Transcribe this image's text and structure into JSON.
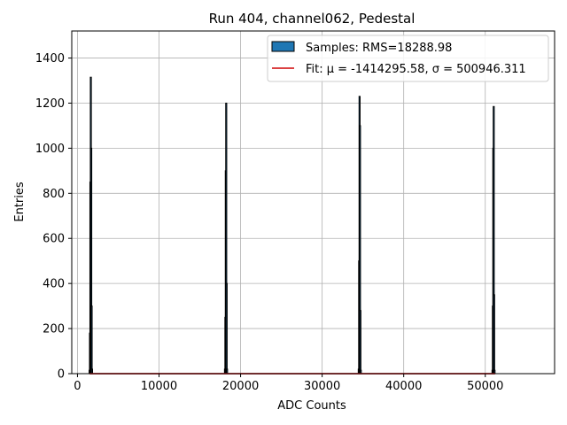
{
  "chart_data": {
    "type": "bar",
    "title": "Run 404, channel062, Pedestal",
    "xlabel": "ADC Counts",
    "ylabel": "Entries",
    "xlim": [
      -700,
      58500
    ],
    "ylim": [
      0,
      1520
    ],
    "xticks": [
      0,
      10000,
      20000,
      30000,
      40000,
      50000
    ],
    "xtick_labels": [
      "0",
      "10000",
      "20000",
      "30000",
      "40000",
      "50000"
    ],
    "yticks": [
      0,
      200,
      400,
      600,
      800,
      1000,
      1200,
      1400
    ],
    "ytick_labels": [
      "0",
      "200",
      "400",
      "600",
      "800",
      "1000",
      "1200",
      "1400"
    ],
    "grid": true,
    "legend_position": "top-right",
    "colors": {
      "hist_fill": "#1f77b4",
      "hist_edge": "#000000",
      "fit_line": "#d62728"
    },
    "series": [
      {
        "name": "Samples: RMS=18288.98",
        "kind": "histogram",
        "x": [
          1480,
          1530,
          1580,
          1630,
          1680,
          1730,
          1780,
          18080,
          18130,
          18180,
          18230,
          18280,
          18330,
          34480,
          34530,
          34580,
          34630,
          34680,
          34730,
          50880,
          50930,
          50980,
          51030,
          51080,
          51130
        ],
        "values": [
          15,
          180,
          850,
          1315,
          1000,
          300,
          20,
          20,
          250,
          900,
          1200,
          400,
          20,
          20,
          500,
          1230,
          1100,
          280,
          15,
          15,
          300,
          1000,
          1185,
          350,
          15
        ]
      },
      {
        "name": "Fit: μ = -1414295.58, σ = 500946.311",
        "kind": "line",
        "x": [
          1500,
          51200
        ],
        "values": [
          0,
          0
        ]
      }
    ]
  }
}
